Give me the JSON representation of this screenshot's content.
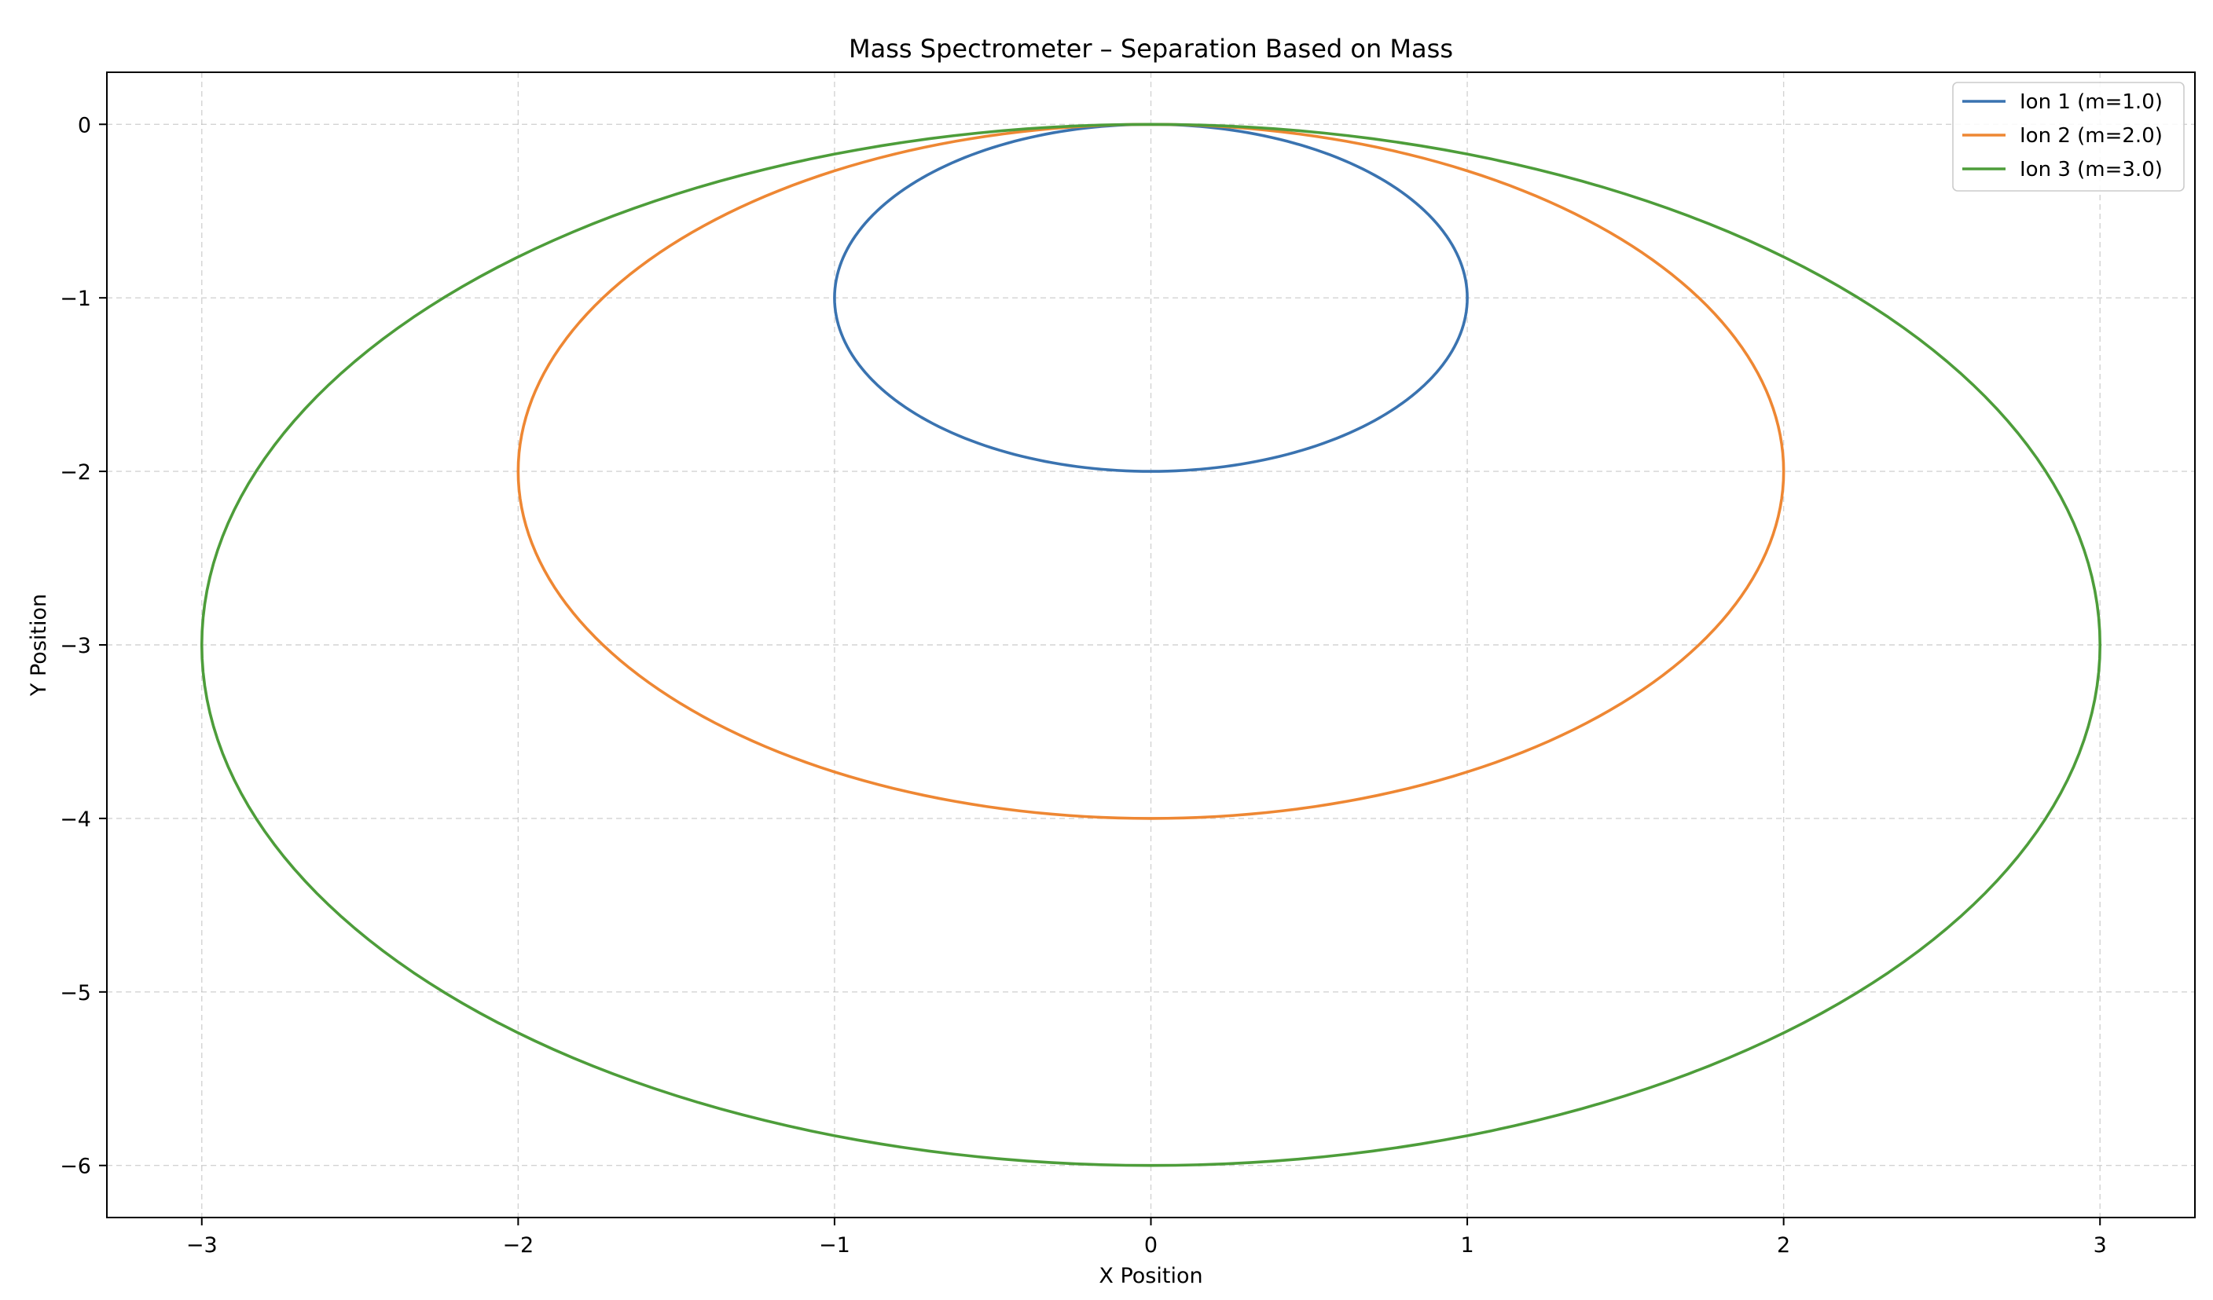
{
  "chart_data": {
    "type": "line",
    "title": "Mass Spectrometer – Separation Based on Mass",
    "xlabel": "X Position",
    "ylabel": "Y Position",
    "xlim": [
      -3.3,
      3.3
    ],
    "ylim": [
      -6.3,
      0.3
    ],
    "xticks": [
      -3,
      -2,
      -1,
      0,
      1,
      2,
      3
    ],
    "yticks": [
      0,
      -1,
      -2,
      -3,
      -4,
      -5,
      -6
    ],
    "xtick_labels": [
      "−3",
      "−2",
      "−1",
      "0",
      "1",
      "2",
      "3"
    ],
    "ytick_labels": [
      "0",
      "−1",
      "−2",
      "−3",
      "−4",
      "−5",
      "−6"
    ],
    "grid": true,
    "legend_position": "top-right",
    "series": [
      {
        "name": "Ion 1 (m=1.0)",
        "color": "#3a73b0",
        "shape": "ellipse",
        "center": [
          0,
          -1
        ],
        "rx": 1,
        "ry": 1
      },
      {
        "name": "Ion 2 (m=2.0)",
        "color": "#ee8733",
        "shape": "ellipse",
        "center": [
          0,
          -2
        ],
        "rx": 2,
        "ry": 2
      },
      {
        "name": "Ion 3 (m=3.0)",
        "color": "#4d9d3a",
        "shape": "ellipse",
        "center": [
          0,
          -3
        ],
        "rx": 3,
        "ry": 3
      }
    ]
  }
}
